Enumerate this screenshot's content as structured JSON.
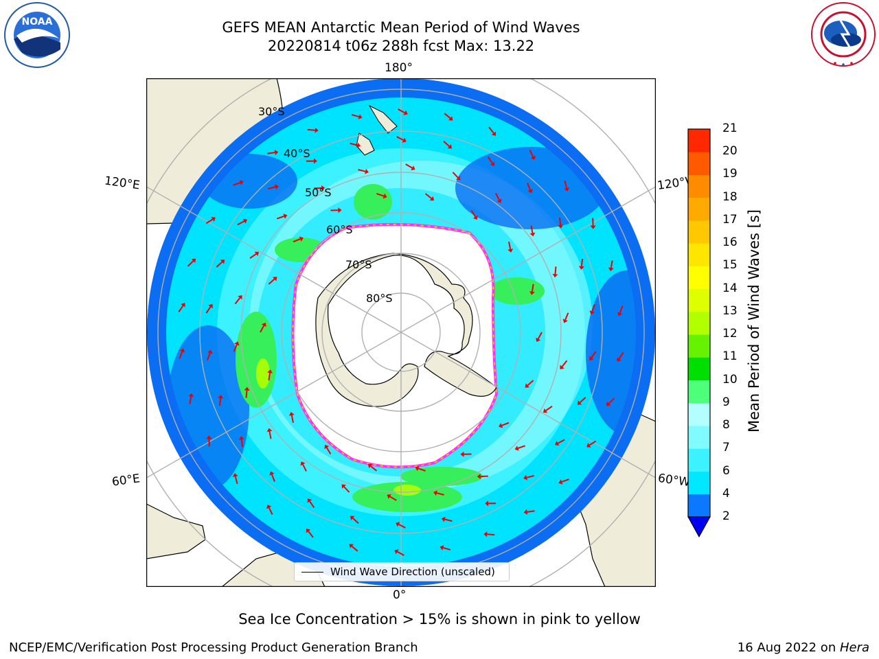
{
  "header": {
    "title_line1": "GEFS MEAN Antarctic Mean Period of Wind Waves",
    "title_line2": "20220814 t06z 288h fcst   Max: 13.22"
  },
  "map": {
    "lon_labels": {
      "top": "180°",
      "bottom": "0°",
      "left_upper": "120°E",
      "left_lower": "60°E",
      "right_upper": "120°W",
      "right_lower": "60°W"
    },
    "lat_labels": [
      "30°S",
      "40°S",
      "50°S",
      "60°S",
      "70°S",
      "80°S"
    ],
    "legend_label": "Wind Wave Direction (unscaled)"
  },
  "colorbar": {
    "label": "Mean Period of Wind Waves [s]",
    "ticks": [
      "2",
      "4",
      "6",
      "7",
      "8",
      "9",
      "10",
      "11",
      "12",
      "13",
      "14",
      "15",
      "16",
      "17",
      "18",
      "19",
      "20",
      "21"
    ],
    "colors": [
      "#0a78ff",
      "#00e8ff",
      "#3cf2ff",
      "#80fbff",
      "#b3ffff",
      "#4dff79",
      "#00e000",
      "#66f200",
      "#b2ff00",
      "#ddff00",
      "#ffff00",
      "#ffe600",
      "#ffc800",
      "#ffaa00",
      "#ff8c00",
      "#ff5a00",
      "#ff2800",
      "#ff0000"
    ],
    "extend_color": "#0000ee"
  },
  "footer": {
    "note": "Sea Ice Concentration > 15% is shown in pink to yellow",
    "left": "NCEP/EMC/Verification Post Processing Product Generation Branch",
    "right_prefix": "16 Aug 2022 on ",
    "right_host": "Hera"
  },
  "logos": {
    "left": "NOAA",
    "right": "NATIONAL WEATHER SERVICE"
  },
  "colors": {
    "land": "#efedda",
    "ocean_dark": "#0a6df2",
    "ocean_mid": "#00e3ff",
    "ocean_light": "#9ffcff",
    "green": "#36ef5a",
    "ice_edge": "#ff33ee",
    "arrow": "#ee0000",
    "grid": "#b0b0b0"
  }
}
